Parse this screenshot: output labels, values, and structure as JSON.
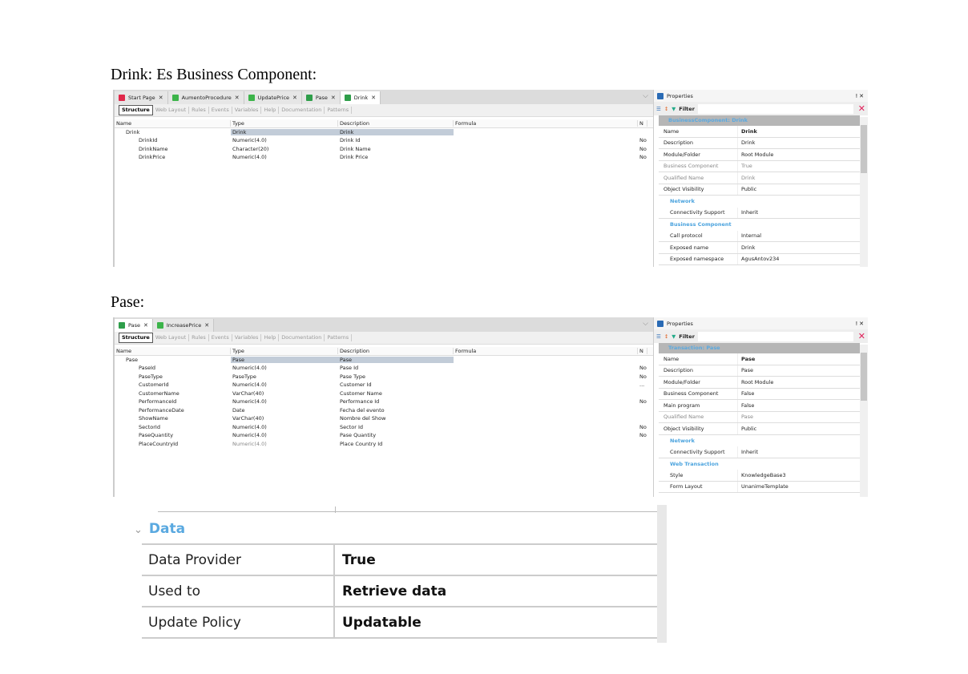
{
  "headings": {
    "drink": "Drink: Es Business Component:",
    "pase": "Pase:"
  },
  "shot1": {
    "tabs": [
      {
        "label": "Start Page",
        "icon": "start-page-icon",
        "color": "#e0284a"
      },
      {
        "label": "AumentoProcedure",
        "icon": "procedure-icon",
        "color": "#3cb44a"
      },
      {
        "label": "UpdatePrice",
        "icon": "procedure-icon",
        "color": "#3cb44a"
      },
      {
        "label": "Pase",
        "icon": "transaction-icon",
        "color": "#2e9e4a"
      },
      {
        "label": "Drink",
        "icon": "transaction-icon",
        "color": "#2e9e4a",
        "active": true
      }
    ],
    "toolbar": [
      "Structure",
      "Web Layout",
      "Rules",
      "Events",
      "Variables",
      "Help",
      "Documentation",
      "Patterns"
    ],
    "columns": [
      "Name",
      "Type",
      "Description",
      "Formula",
      "N"
    ],
    "rows": [
      [
        "Drink",
        "Drink",
        "Drink",
        "",
        ""
      ],
      [
        "DrinkId",
        "Numeric(4.0)",
        "Drink Id",
        "",
        "No"
      ],
      [
        "DrinkName",
        "Character(20)",
        "Drink Name",
        "",
        "No"
      ],
      [
        "DrinkPrice",
        "Numeric(4.0)",
        "Drink Price",
        "",
        "No"
      ]
    ],
    "props": {
      "title": "Properties",
      "filter": "Filter",
      "category": "BusinessComponent: Drink",
      "items": [
        {
          "k": "Name",
          "v": "Drink",
          "bold": true
        },
        {
          "k": "Description",
          "v": "Drink"
        },
        {
          "k": "Module/Folder",
          "v": "Root Module"
        },
        {
          "k": "Business Component",
          "v": "True",
          "gray": true
        },
        {
          "k": "Qualified Name",
          "v": "Drink",
          "gray": true
        },
        {
          "k": "Object Visibility",
          "v": "Public"
        },
        {
          "section": "Network"
        },
        {
          "k": "Connectivity Support",
          "v": "Inherit",
          "sub": true
        },
        {
          "section": "Business Component"
        },
        {
          "k": "Call protocol",
          "v": "Internal",
          "sub": true
        },
        {
          "k": "Exposed name",
          "v": "Drink",
          "sub": true
        },
        {
          "k": "Exposed namespace",
          "v": "AgusAntov234",
          "sub": true
        }
      ]
    }
  },
  "shot2": {
    "tabs": [
      {
        "label": "Pase",
        "icon": "transaction-icon",
        "color": "#2e9e4a",
        "active": true
      },
      {
        "label": "IncreasePrice",
        "icon": "procedure-icon",
        "color": "#3cb44a"
      }
    ],
    "toolbar": [
      "Structure",
      "Web Layout",
      "Rules",
      "Events",
      "Variables",
      "Help",
      "Documentation",
      "Patterns"
    ],
    "columns": [
      "Name",
      "Type",
      "Description",
      "Formula",
      "N"
    ],
    "rows": [
      [
        "Pase",
        "Pase",
        "Pase",
        "",
        ""
      ],
      [
        "PaseId",
        "Numeric(4.0)",
        "Pase Id",
        "",
        "No"
      ],
      [
        "PaseType",
        "PaseType",
        "Pase Type",
        "",
        "No"
      ],
      [
        "CustomerId",
        "Numeric(4.0)",
        "Customer Id",
        "",
        "..."
      ],
      [
        "CustomerName",
        "VarChar(40)",
        "Customer Name",
        "",
        ""
      ],
      [
        "PerformanceId",
        "Numeric(4.0)",
        "Performance Id",
        "",
        "No"
      ],
      [
        "PerformanceDate",
        "Date",
        "Fecha del evento",
        "",
        ""
      ],
      [
        "ShowName",
        "VarChar(40)",
        "Nombre del Show",
        "",
        ""
      ],
      [
        "SectorId",
        "Numeric(4.0)",
        "Sector Id",
        "",
        "No"
      ],
      [
        "PaseQuantity",
        "Numeric(4.0)",
        "Pase Quantity",
        "",
        "No"
      ],
      [
        "PlaceCountryId",
        "Numeric(4.0)",
        "Place Country Id",
        "",
        ""
      ]
    ],
    "props": {
      "title": "Properties",
      "filter": "Filter",
      "category": "Transaction: Pase",
      "items": [
        {
          "k": "Name",
          "v": "Pase",
          "bold": true
        },
        {
          "k": "Description",
          "v": "Pase"
        },
        {
          "k": "Module/Folder",
          "v": "Root Module"
        },
        {
          "k": "Business Component",
          "v": "False"
        },
        {
          "k": "Main program",
          "v": "False"
        },
        {
          "k": "Qualified Name",
          "v": "Pase",
          "gray": true
        },
        {
          "k": "Object Visibility",
          "v": "Public"
        },
        {
          "section": "Network"
        },
        {
          "k": "Connectivity Support",
          "v": "Inherit",
          "sub": true
        },
        {
          "section": "Web Transaction"
        },
        {
          "k": "Style",
          "v": "KnowledgeBase3",
          "sub": true
        },
        {
          "k": "Form Layout",
          "v": "UnanimeTemplate",
          "sub": true
        }
      ]
    }
  },
  "data_section": {
    "title": "Data",
    "rows": [
      {
        "k": "Data Provider",
        "v": "True"
      },
      {
        "k": "Used to",
        "v": "Retrieve data"
      },
      {
        "k": "Update Policy",
        "v": "Updatable"
      }
    ]
  }
}
